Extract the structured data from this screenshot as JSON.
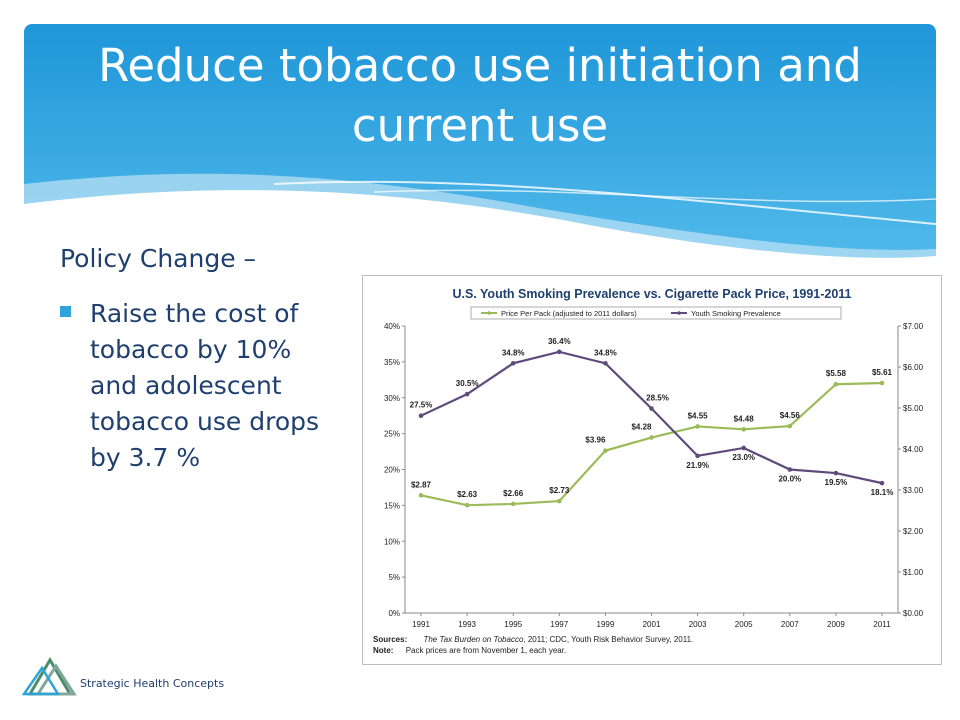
{
  "slide": {
    "title": "Reduce tobacco use initiation and current use",
    "policy_heading": "Policy Change –",
    "bullet": "Raise the cost of tobacco by 10% and adolescent tobacco use drops by 3.7 %",
    "logo_text": "Strategic Health Concepts",
    "colors": {
      "header_blue": "#2fa4dc",
      "text_navy": "#1f3f6e",
      "price_green": "#9bbb59",
      "prevalence_purple": "#604a7b"
    }
  },
  "chart_data": {
    "type": "line",
    "title": "U.S. Youth Smoking Prevalence vs. Cigarette Pack Price, 1991-2011",
    "categories": [
      "1991",
      "1993",
      "1995",
      "1997",
      "1999",
      "2001",
      "2003",
      "2005",
      "2007",
      "2009",
      "2011"
    ],
    "series": [
      {
        "name": "Price Per Pack (adjusted to 2011 dollars)",
        "axis": "right",
        "values": [
          2.87,
          2.63,
          2.66,
          2.73,
          3.96,
          4.28,
          4.55,
          4.48,
          4.56,
          5.58,
          5.61
        ],
        "labels": [
          "$2.87",
          "$2.63",
          "$2.66",
          "$2.73",
          "$3.96",
          "$4.28",
          "$4.55",
          "$4.48",
          "$4.56",
          "$5.58",
          "$5.61"
        ],
        "color": "#9bbb59"
      },
      {
        "name": "Youth Smoking Prevalence",
        "axis": "left",
        "values": [
          27.5,
          30.5,
          34.8,
          36.4,
          34.8,
          28.5,
          21.9,
          23.0,
          20.0,
          19.5,
          18.1
        ],
        "labels": [
          "27.5%",
          "30.5%",
          "34.8%",
          "36.4%",
          "34.8%",
          "28.5%",
          "21.9%",
          "23.0%",
          "20.0%",
          "19.5%",
          "18.1%"
        ],
        "color": "#604a7b"
      }
    ],
    "left_axis": {
      "ylim": [
        0,
        40
      ],
      "ticks": [
        "0%",
        "5%",
        "10%",
        "15%",
        "20%",
        "25%",
        "30%",
        "35%",
        "40%"
      ]
    },
    "right_axis": {
      "ylim": [
        0,
        7
      ],
      "ticks": [
        "$0.00",
        "$1.00",
        "$2.00",
        "$3.00",
        "$4.00",
        "$5.00",
        "$6.00",
        "$7.00"
      ]
    },
    "legend_placement": "top",
    "grid": false,
    "sources_label": "Sources:",
    "sources_text_italic": "The Tax Burden on Tobacco",
    "sources_text_rest": ", 2011; CDC, Youth Risk Behavior Survey, 2011.",
    "note_label": "Note:",
    "note_text": "Pack prices are from November 1, each year."
  }
}
